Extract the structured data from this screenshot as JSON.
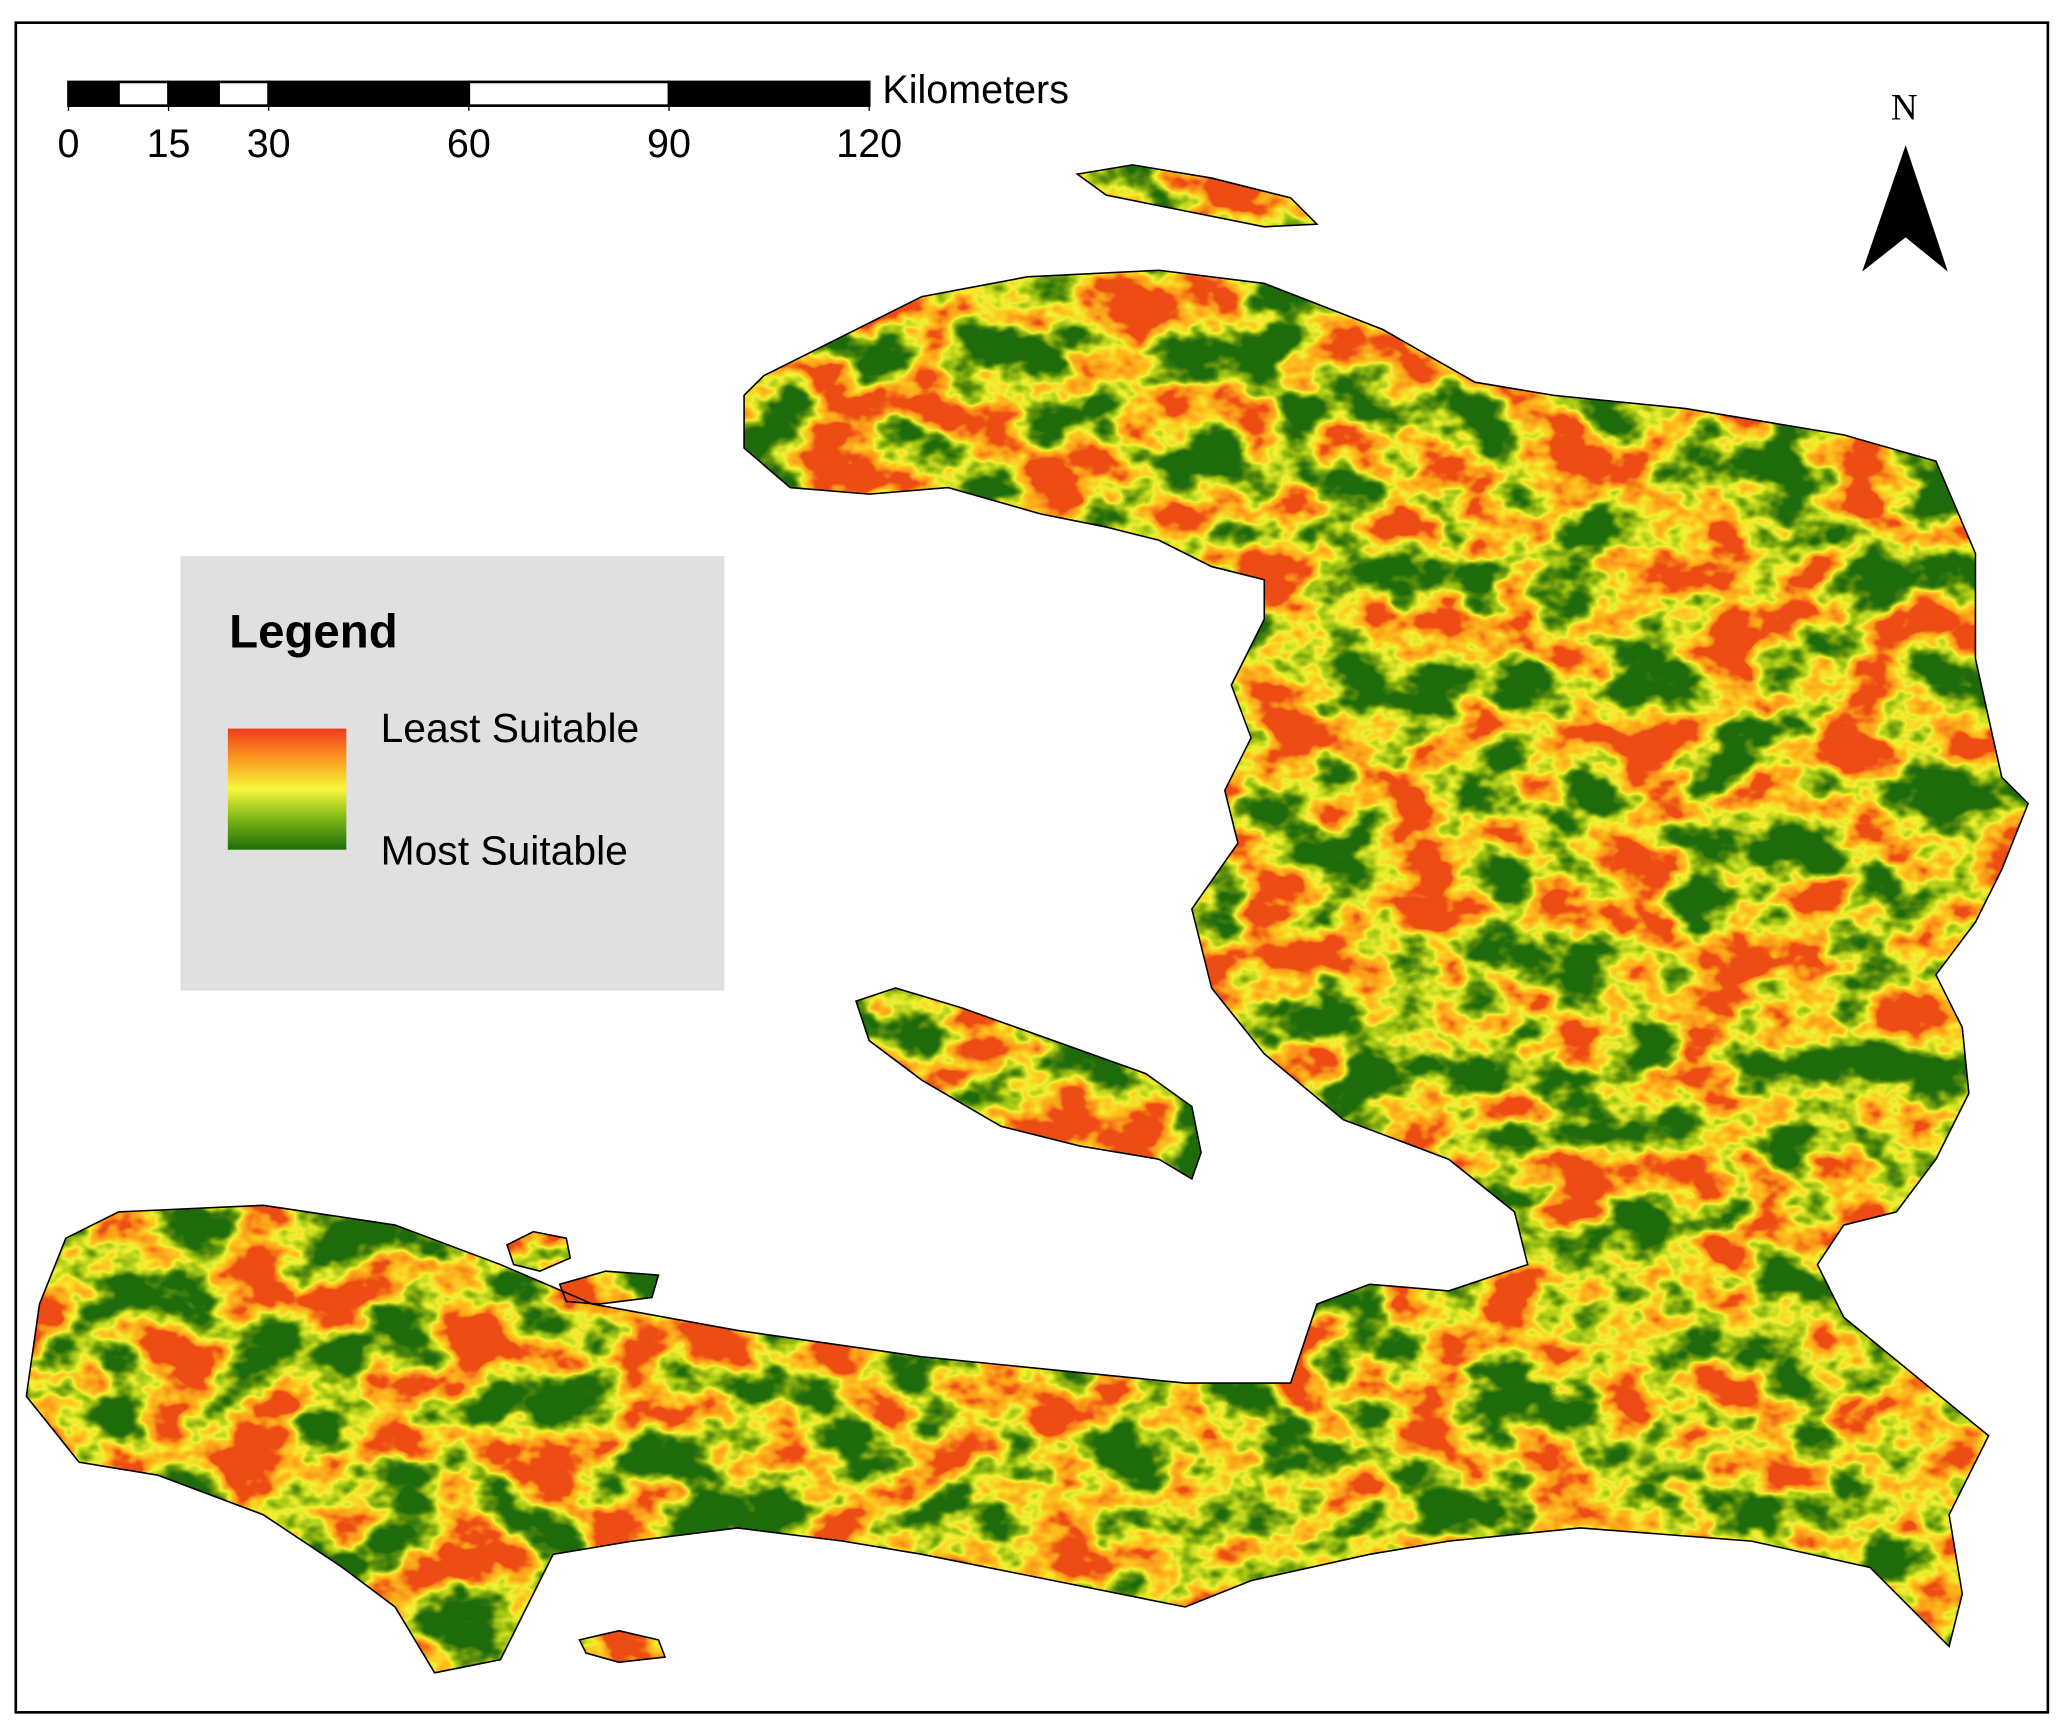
{
  "scale_bar": {
    "unit": "Kilometers",
    "ticks": [
      0,
      15,
      30,
      60,
      90,
      120
    ]
  },
  "north_arrow": {
    "label": "N"
  },
  "legend": {
    "title": "Legend",
    "items": [
      "Least Suitable",
      "Most Suitable"
    ]
  }
}
